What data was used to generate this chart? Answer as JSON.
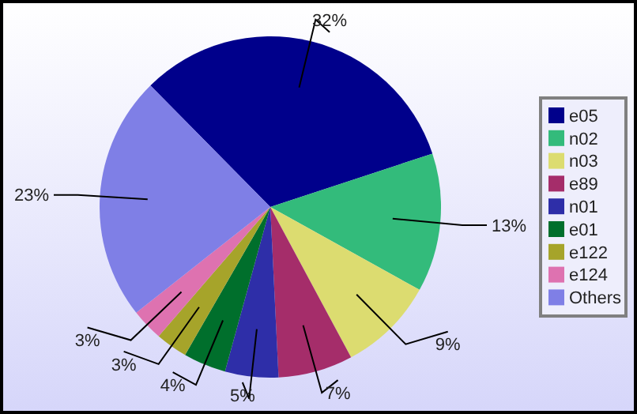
{
  "chart_data": {
    "type": "pie",
    "categories": [
      "e05",
      "n02",
      "n03",
      "e89",
      "n01",
      "e01",
      "e122",
      "e124",
      "Others"
    ],
    "values": [
      32,
      13,
      9,
      7,
      5,
      4,
      3,
      3,
      23
    ],
    "colors": [
      "#00008b",
      "#33bb7b",
      "#dcdc70",
      "#a52d6a",
      "#2e2ea8",
      "#006f2c",
      "#a6a42a",
      "#de72b0",
      "#7f7fe6"
    ],
    "value_labels": [
      "32%",
      "13%",
      "9%",
      "7%",
      "5%",
      "4%",
      "3%",
      "3%",
      "23%"
    ],
    "legend": "right"
  }
}
